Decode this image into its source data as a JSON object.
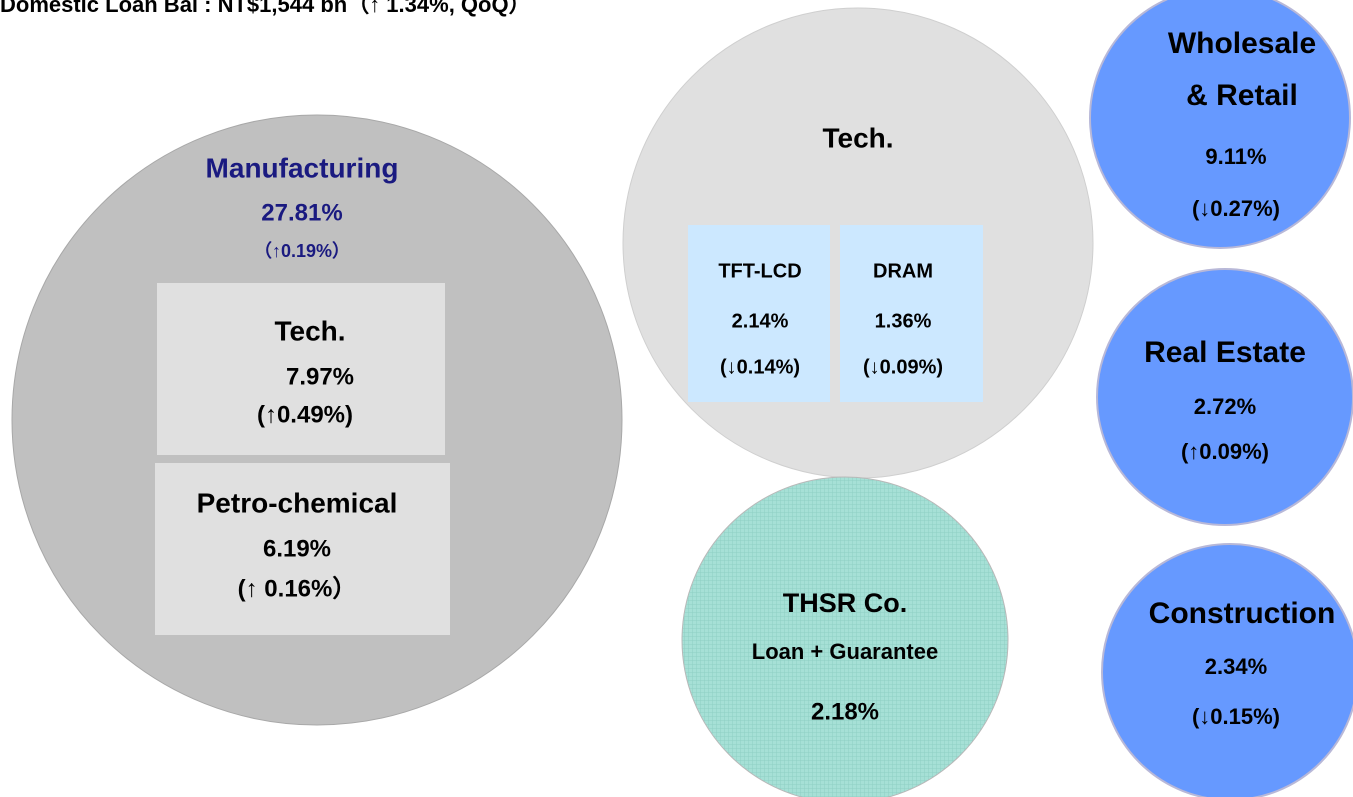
{
  "title": "Domestic Loan Bal : NT$1,544 bn（↑ 1.34%, QoQ）",
  "manufacturing": {
    "label": "Manufacturing",
    "share": "27.81%",
    "change": "（↑0.19%）",
    "segments": [
      {
        "label": "Tech.",
        "share": "7.97%",
        "change": "(↑0.49%)"
      },
      {
        "label": "Petro-chemical",
        "share": "6.19%",
        "change": "(↑ 0.16%）"
      }
    ]
  },
  "tech": {
    "label": "Tech.",
    "segments": [
      {
        "label": "TFT-LCD",
        "share": "2.14%",
        "change": "(↓0.14%)"
      },
      {
        "label": "DRAM",
        "share": "1.36%",
        "change": "(↓0.09%)"
      }
    ]
  },
  "thsr": {
    "label": "THSR Co.",
    "sublabel": "Loan + Guarantee",
    "share": "2.18%"
  },
  "sectors": [
    {
      "lines": [
        "Wholesale",
        "& Retail"
      ],
      "share": "9.11%",
      "change": "(↓0.27%)"
    },
    {
      "lines": [
        "Real Estate"
      ],
      "share": "2.72%",
      "change": "(↑0.09%)"
    },
    {
      "lines": [
        "Construction"
      ],
      "share": "2.34%",
      "change": "(↓0.15%)"
    }
  ]
}
